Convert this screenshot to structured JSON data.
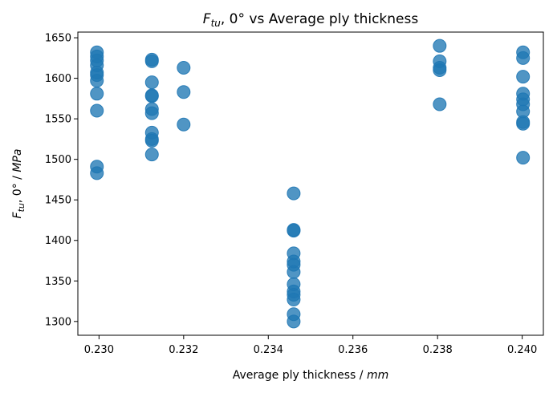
{
  "chart_data": {
    "type": "scatter",
    "title": {
      "main": "F",
      "sub": "tu",
      "rest": ", 0° vs Average ply thickness"
    },
    "xlabel": {
      "text": "Average ply thickness / ",
      "unit": "mm"
    },
    "ylabel": {
      "main": "F",
      "sub": "tu",
      "rest": ", 0° / ",
      "unit": "MPa"
    },
    "xlim": [
      0.2295,
      0.2405
    ],
    "ylim": [
      1283,
      1657
    ],
    "xticks": [
      0.23,
      0.232,
      0.234,
      0.236,
      0.238,
      0.24
    ],
    "xtick_labels": [
      "0.230",
      "0.232",
      "0.234",
      "0.236",
      "0.238",
      "0.240"
    ],
    "yticks": [
      1300,
      1350,
      1400,
      1450,
      1500,
      1550,
      1600,
      1650
    ],
    "ytick_labels": [
      "1300",
      "1350",
      "1400",
      "1450",
      "1500",
      "1550",
      "1600",
      "1650"
    ],
    "grid": false,
    "marker_color": "#1f77b4",
    "series": [
      {
        "points": [
          [
            0.22995,
            1632
          ],
          [
            0.22995,
            1627
          ],
          [
            0.22995,
            1622
          ],
          [
            0.22995,
            1616
          ],
          [
            0.22995,
            1607
          ],
          [
            0.22995,
            1604
          ],
          [
            0.22995,
            1597
          ],
          [
            0.22995,
            1581
          ],
          [
            0.22995,
            1560
          ],
          [
            0.22995,
            1491
          ],
          [
            0.22995,
            1483
          ],
          [
            0.23125,
            1623
          ],
          [
            0.23125,
            1621
          ],
          [
            0.23125,
            1595
          ],
          [
            0.23125,
            1579
          ],
          [
            0.23125,
            1578
          ],
          [
            0.23125,
            1562
          ],
          [
            0.23125,
            1557
          ],
          [
            0.23125,
            1533
          ],
          [
            0.23125,
            1525
          ],
          [
            0.23125,
            1523
          ],
          [
            0.23125,
            1506
          ],
          [
            0.232,
            1613
          ],
          [
            0.232,
            1583
          ],
          [
            0.232,
            1543
          ],
          [
            0.2346,
            1458
          ],
          [
            0.2346,
            1413
          ],
          [
            0.2346,
            1412
          ],
          [
            0.2346,
            1384
          ],
          [
            0.2346,
            1374
          ],
          [
            0.2346,
            1370
          ],
          [
            0.2346,
            1361
          ],
          [
            0.2346,
            1346
          ],
          [
            0.2346,
            1337
          ],
          [
            0.2346,
            1333
          ],
          [
            0.2346,
            1327
          ],
          [
            0.2346,
            1309
          ],
          [
            0.2346,
            1300
          ],
          [
            0.23805,
            1640
          ],
          [
            0.23805,
            1621
          ],
          [
            0.23805,
            1613
          ],
          [
            0.23805,
            1610
          ],
          [
            0.23805,
            1568
          ],
          [
            0.24002,
            1632
          ],
          [
            0.24002,
            1625
          ],
          [
            0.24002,
            1602
          ],
          [
            0.24002,
            1581
          ],
          [
            0.24002,
            1574
          ],
          [
            0.24002,
            1568
          ],
          [
            0.24002,
            1559
          ],
          [
            0.24002,
            1546
          ],
          [
            0.24002,
            1544
          ],
          [
            0.24002,
            1502
          ]
        ]
      }
    ]
  }
}
